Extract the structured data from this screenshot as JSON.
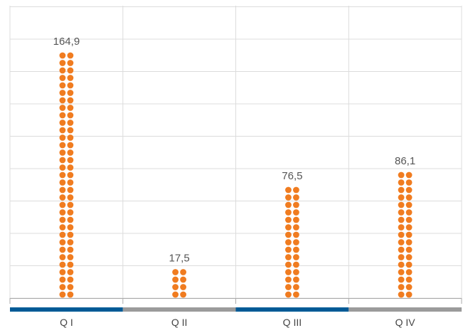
{
  "chart_data": {
    "type": "bar",
    "style": "dot-column",
    "categories": [
      "Q I",
      "Q II",
      "Q III",
      "Q IV"
    ],
    "values": [
      164.9,
      17.5,
      76.5,
      86.1
    ],
    "value_labels": [
      "164,9",
      "17,5",
      "76,5",
      "86,1"
    ],
    "title": "",
    "xlabel": "",
    "ylabel": "",
    "ylim": [
      0,
      180
    ],
    "grid": true,
    "legend": "none",
    "colors": {
      "dots": "#f07c20",
      "band_primary": "#005a96",
      "band_secondary": "#9b9b9b",
      "grid": "#dcdcdc",
      "axis": "#aaaaaa"
    }
  }
}
